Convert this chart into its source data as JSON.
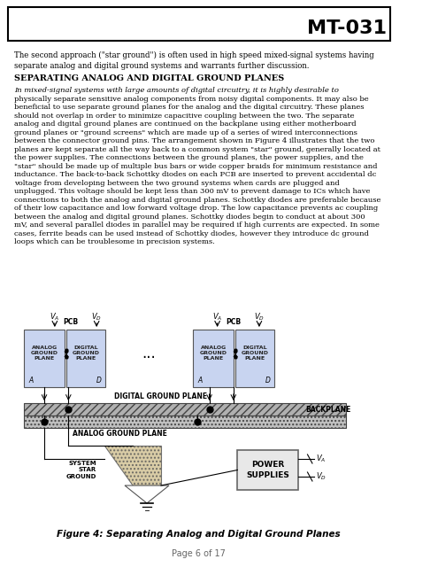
{
  "title": "MT-031",
  "page_text": "Page 6 of 17",
  "figure_caption": "Figure 4: Separating Analog and Digital Ground Planes",
  "header_intro": "The second approach (\"star ground\") is often used in high speed mixed-signal systems having\nseparate analog and digital ground systems and warrants further discussion.",
  "section_heading": "SEPARATING ANALOG AND DIGITAL GROUND PLANES",
  "body_text": "In mixed-signal systems with large amounts of digital circuitry, it is highly desirable to\nphysically separate sensitive analog components from noisy digital components. It may also be\nbeneficial to use separate ground planes for the analog and the digital circuitry. These planes\nshould not overlap in order to minimize capacitive coupling between the two. The separate\nanalog and digital ground planes are continued on the backplane using either motherboard\nground planes or \"ground screens\" which are made up of a series of wired interconnections\nbetween the connector ground pins. The arrangement shown in Figure 4 illustrates that the two\nplanes are kept separate all the way back to a common system \"star\" ground, generally located at\nthe power supplies. The connections between the ground planes, the power supplies, and the\n\"star\" should be made up of multiple bus bars or wide copper braids for minimum resistance and\ninductance. The back-to-back Schottky diodes on each PCB are inserted to prevent accidental dc\nvoltage from developing between the two ground systems when cards are plugged and\nunplugged. This voltage should be kept less than 300 mV to prevent damage to ICs which have\nconnections to both the analog and digital ground planes. Schottky diodes are preferable because\nof their low capacitance and low forward voltage drop. The low capacitance prevents ac coupling\nbetween the analog and digital ground planes. Schottky diodes begin to conduct at about 300\nmV, and several parallel diodes in parallel may be required if high currents are expected. In some\ncases, ferrite beads can be used instead of Schottky diodes, however they introduce dc ground\nloops which can be troublesome in precision systems.",
  "bg_color": "#ffffff",
  "text_color": "#000000",
  "border_color": "#000000",
  "analog_plane_color": "#c8d4f0",
  "digital_plane_color": "#c8d4f0",
  "backplane_color": "#d0d0d0",
  "star_ground_color": "#d8c8a0"
}
